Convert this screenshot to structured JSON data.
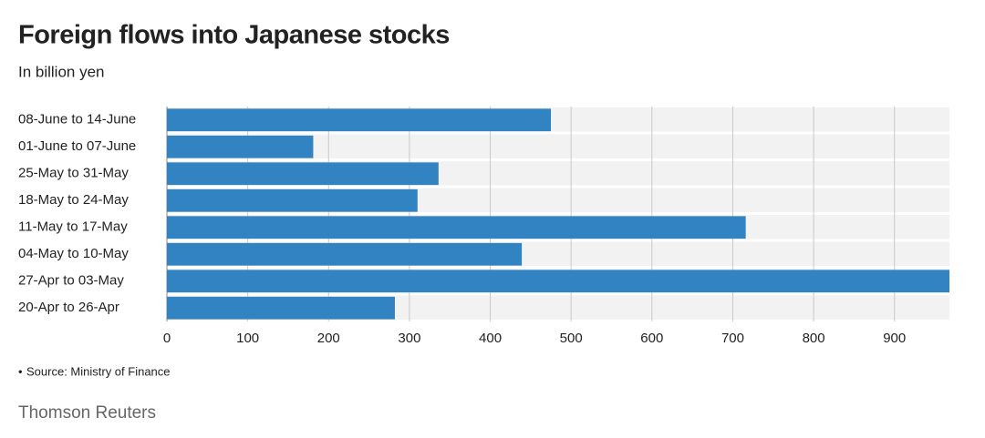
{
  "chart_data": {
    "type": "bar",
    "orientation": "horizontal",
    "title": "Foreign flows into Japanese stocks",
    "subtitle": "In billion yen",
    "categories": [
      "08-June to 14-June",
      "01-June to 07-June",
      "25-May to 31-May",
      "18-May to 24-May",
      "11-May to 17-May",
      "04-May to 10-May",
      "27-Apr to 03-May",
      "20-Apr to 26-Apr"
    ],
    "values": [
      475,
      181,
      336,
      310,
      716,
      439,
      968,
      282
    ],
    "color": "#3283c2",
    "xlim": [
      0,
      968
    ],
    "xticks": [
      0,
      100,
      200,
      300,
      400,
      500,
      600,
      700,
      800,
      900
    ],
    "grid": true,
    "source": "Source: Ministry of Finance",
    "credit": "Thomson Reuters"
  }
}
